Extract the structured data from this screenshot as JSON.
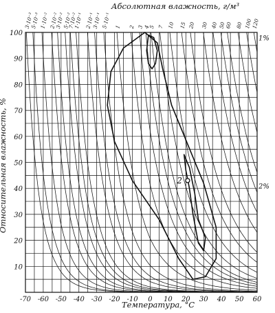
{
  "chart_data": {
    "type": "line",
    "title": "",
    "xlabel": "Температура, °C",
    "ylabel": "Относительная влажность, %",
    "top_label": "Абсолютная влажность, г/м³",
    "xlim": [
      -70,
      60
    ],
    "ylim": [
      0,
      100
    ],
    "grid": true,
    "x_ticks": [
      "-70",
      "-60",
      "-50",
      "-40",
      "-30",
      "-20",
      "-10",
      "0",
      "10",
      "20",
      "30",
      "40",
      "50",
      "60"
    ],
    "y_ticks": [
      "10",
      "20",
      "30",
      "40",
      "50",
      "60",
      "70",
      "80",
      "90",
      "100"
    ],
    "absolute_humidity_labels": [
      "3·10⁻³",
      "5·10⁻³",
      "1·10⁻²",
      "2·10⁻²",
      "3·10⁻²",
      "5·10⁻²",
      "7·10⁻²",
      "1·10⁻¹",
      "2·10⁻¹",
      "3·10⁻¹",
      "5·10⁻¹",
      "1",
      "2",
      "3",
      "4",
      "5",
      "7",
      "10",
      "15",
      "20",
      "30",
      "40",
      "50",
      "60",
      "80",
      "100",
      "120"
    ],
    "absolute_humidity_values": [
      0.003,
      0.005,
      0.01,
      0.02,
      0.03,
      0.05,
      0.07,
      0.1,
      0.2,
      0.3,
      0.5,
      1,
      2,
      3,
      4,
      5,
      7,
      10,
      15,
      20,
      30,
      40,
      50,
      60,
      80,
      100,
      120
    ],
    "annotations": [
      {
        "text": "1%",
        "x": 62,
        "y": 98
      },
      {
        "text": "2%",
        "x": 62,
        "y": 41
      },
      {
        "text": "2",
        "x": 15,
        "y": 43
      }
    ],
    "contours": [
      {
        "name": "1%",
        "points": [
          [
            -3,
            100
          ],
          [
            -15,
            94
          ],
          [
            -22,
            85
          ],
          [
            -24,
            72
          ],
          [
            -20,
            58
          ],
          [
            -10,
            43
          ],
          [
            5,
            28
          ],
          [
            16,
            13
          ],
          [
            24,
            5
          ],
          [
            31,
            6
          ],
          [
            37,
            13
          ],
          [
            37,
            25
          ],
          [
            30,
            42
          ],
          [
            21,
            57
          ],
          [
            12,
            72
          ],
          [
            7,
            86
          ],
          [
            4,
            96
          ],
          [
            -3,
            100
          ]
        ]
      },
      {
        "name": "2%",
        "points": [
          [
            -1,
            99
          ],
          [
            -2,
            93
          ],
          [
            -1,
            88
          ],
          [
            1,
            86
          ],
          [
            3,
            88
          ],
          [
            4,
            93
          ],
          [
            2,
            98
          ],
          [
            -1,
            99
          ]
        ]
      },
      {
        "name": "2%",
        "points": [
          [
            19,
            53
          ],
          [
            22,
            48
          ],
          [
            25,
            38
          ],
          [
            27,
            28
          ],
          [
            31,
            21
          ],
          [
            30,
            16
          ],
          [
            27,
            19
          ],
          [
            24,
            30
          ],
          [
            22,
            40
          ],
          [
            20,
            47
          ],
          [
            19,
            53
          ]
        ]
      }
    ],
    "points": [
      [
        21,
        43
      ]
    ]
  }
}
